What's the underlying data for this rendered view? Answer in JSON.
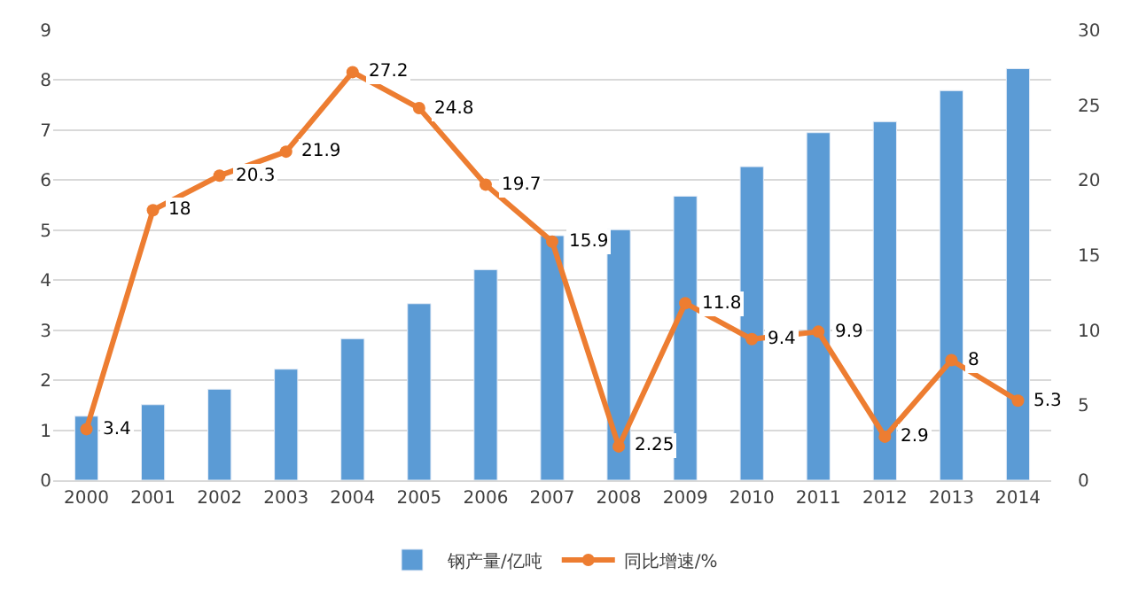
{
  "chart_data": {
    "type": "bar",
    "categories": [
      "2000",
      "2001",
      "2002",
      "2003",
      "2004",
      "2005",
      "2006",
      "2007",
      "2008",
      "2009",
      "2010",
      "2011",
      "2012",
      "2013",
      "2014"
    ],
    "series": [
      {
        "name": "钢产量/亿吨",
        "color": "#5b9bd5",
        "values": [
          1.28,
          1.51,
          1.82,
          2.22,
          2.83,
          3.53,
          4.21,
          4.89,
          5.01,
          5.68,
          6.27,
          6.95,
          7.17,
          7.79,
          8.23
        ]
      },
      {
        "name": "同比增速/%",
        "type": "line",
        "axis": "y2",
        "color": "#ed7d31",
        "marker": "circle",
        "values": [
          3.4,
          18,
          20.3,
          21.9,
          27.2,
          24.8,
          19.7,
          15.9,
          2.25,
          11.8,
          9.4,
          9.9,
          2.9,
          8,
          5.3
        ],
        "value_labels": [
          "3.4",
          "18",
          "20.3",
          "21.9",
          "27.2",
          "24.8",
          "19.7",
          "15.9",
          "2.25",
          "11.8",
          "9.4",
          "9.9",
          "2.9",
          "8",
          "5.3"
        ]
      }
    ],
    "ylim": [
      0,
      9
    ],
    "yticks": [
      0,
      1,
      2,
      3,
      4,
      5,
      6,
      7,
      8,
      9
    ],
    "y2lim": [
      0,
      30
    ],
    "y2ticks": [
      0,
      5,
      10,
      15,
      20,
      25,
      30
    ],
    "grid": "y",
    "legend": "bottom"
  }
}
